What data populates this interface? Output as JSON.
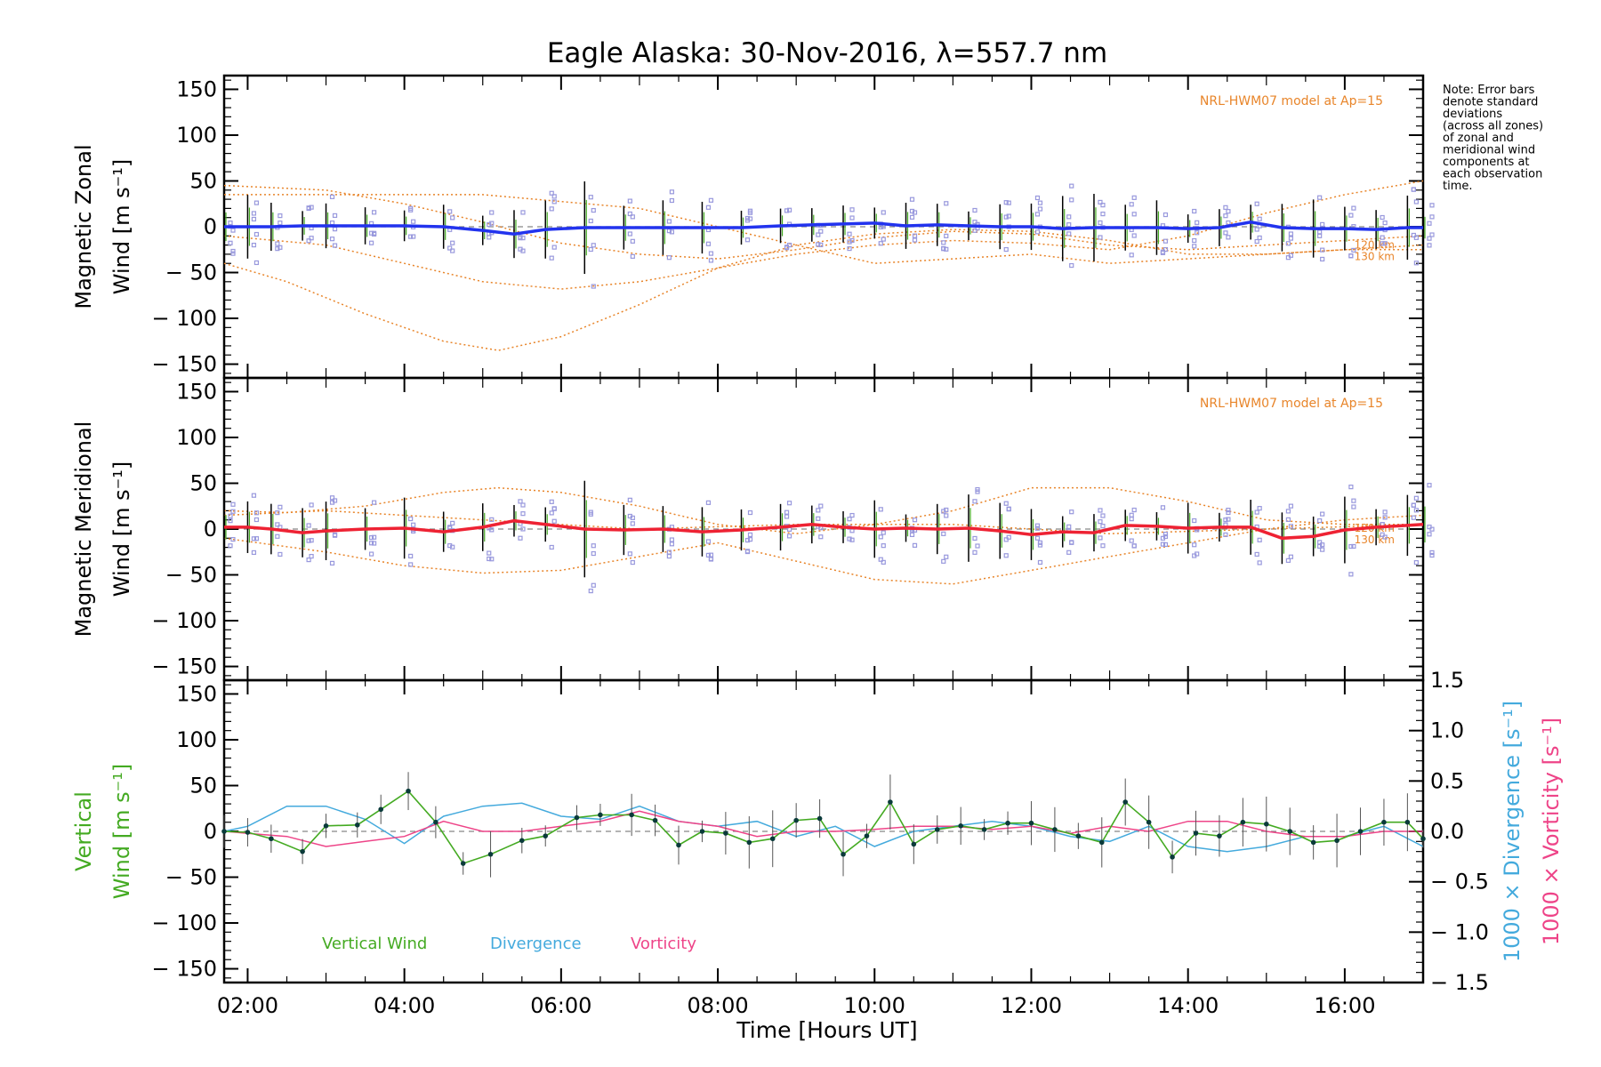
{
  "title": "Eagle Alaska: 30-Nov-2016, λ=557.7 nm",
  "note_lines": [
    "Note: Error bars",
    "denote standard",
    "deviations",
    "(across all zones)",
    "of zonal and",
    "meridional wind",
    "components at",
    "each observation",
    "time."
  ],
  "model_label": "NRL-HWM07 model at Ap=15",
  "alt_labels": [
    "120 km",
    "130 km"
  ],
  "xlabel": "Time [Hours UT]",
  "x_ticks": [
    "02:00",
    "04:00",
    "06:00",
    "08:00",
    "10:00",
    "12:00",
    "14:00",
    "16:00"
  ],
  "y_ticks": [
    "150",
    "100",
    "50",
    "0",
    "− 50",
    "− 100",
    "− 150"
  ],
  "y2_ticks": [
    "1.5",
    "1.0",
    "0.5",
    "0.0",
    "− 0.5",
    "− 1.0",
    "− 1.5"
  ],
  "panels": {
    "zonal": {
      "ylabel_line1": "Magnetic Zonal",
      "ylabel_line2": "Wind [m s⁻¹]"
    },
    "meridional": {
      "ylabel_line1": "Magnetic Meridional",
      "ylabel_line2": "Wind [m s⁻¹]"
    },
    "vertical": {
      "ylabel_line1": "Vertical",
      "ylabel_line2": "Wind [m s⁻¹]",
      "y2label_divergence": "1000 × Divergence [s⁻¹]",
      "y2label_vorticity": "1000 × Vorticity [s⁻¹]"
    }
  },
  "legend": {
    "vertical": "Vertical Wind",
    "divergence": "Divergence",
    "vorticity": "Vorticity"
  },
  "colors": {
    "zonal": "#2233ee",
    "meridional": "#ee2233",
    "vertical": "#44aa22",
    "divergence": "#44aadd",
    "vorticity": "#ee4488",
    "model": "#e8852a",
    "scatter": "#9999dd",
    "errbar": "#000000"
  },
  "chart_data": [
    {
      "type": "line",
      "name": "zonal",
      "xlim": [
        1.7,
        17.0
      ],
      "ylim": [
        -165,
        165
      ],
      "series": [
        {
          "name": "Zonal wind",
          "x": [
            1.7,
            2.0,
            2.3,
            2.7,
            3.0,
            3.5,
            4.0,
            4.5,
            5.0,
            5.4,
            5.8,
            6.3,
            6.8,
            7.3,
            7.8,
            8.3,
            8.8,
            9.2,
            9.6,
            10.0,
            10.4,
            10.8,
            11.2,
            11.6,
            12.0,
            12.4,
            12.8,
            13.2,
            13.6,
            14.0,
            14.4,
            14.8,
            15.2,
            15.6,
            16.0,
            16.4,
            16.8,
            17.0
          ],
          "y": [
            0,
            0,
            0,
            1,
            1,
            1,
            1,
            0,
            -4,
            -8,
            -3,
            -1,
            -1,
            -1,
            -1,
            -1,
            1,
            2,
            3,
            4,
            1,
            2,
            1,
            0,
            0,
            -2,
            -1,
            -1,
            -1,
            -2,
            -1,
            5,
            -1,
            -2,
            -2,
            -3,
            -1,
            -1
          ]
        }
      ],
      "models": [
        {
          "x": [
            1.7,
            3,
            4,
            5,
            6,
            7,
            8,
            9,
            10,
            11,
            12,
            13,
            14,
            15,
            16,
            17
          ],
          "y": [
            45,
            40,
            25,
            5,
            -18,
            -30,
            -35,
            -25,
            -12,
            -5,
            -8,
            -20,
            -25,
            -20,
            -15,
            -10
          ]
        },
        {
          "x": [
            1.7,
            2.5,
            3.5,
            4.5,
            5.2,
            6,
            7,
            8,
            9,
            10,
            11,
            12,
            13,
            14,
            15,
            16,
            17
          ],
          "y": [
            -40,
            -60,
            -95,
            -125,
            -135,
            -120,
            -85,
            -45,
            -20,
            -8,
            -3,
            -5,
            -15,
            -30,
            -30,
            -25,
            -25
          ]
        },
        {
          "x": [
            1.7,
            3,
            4,
            5,
            6,
            7,
            8,
            9,
            10,
            11,
            12,
            13,
            14,
            15,
            16,
            17
          ],
          "y": [
            -10,
            -20,
            -40,
            -60,
            -68,
            -60,
            -45,
            -30,
            -20,
            -15,
            -18,
            -25,
            -10,
            15,
            35,
            50
          ]
        },
        {
          "x": [
            1.7,
            3,
            5,
            7,
            9,
            10,
            11,
            12,
            13,
            14,
            15,
            16,
            17
          ],
          "y": [
            35,
            35,
            35,
            20,
            -20,
            -40,
            -35,
            -30,
            -40,
            -35,
            -30,
            -25,
            -20
          ]
        }
      ]
    },
    {
      "type": "line",
      "name": "meridional",
      "xlim": [
        1.7,
        17.0
      ],
      "ylim": [
        -165,
        165
      ],
      "series": [
        {
          "name": "Meridional wind",
          "x": [
            1.7,
            2.0,
            2.3,
            2.7,
            3.0,
            3.5,
            4.0,
            4.5,
            5.0,
            5.4,
            5.8,
            6.3,
            6.8,
            7.3,
            7.8,
            8.3,
            8.8,
            9.2,
            9.6,
            10.0,
            10.4,
            10.8,
            11.2,
            11.6,
            12.0,
            12.4,
            12.8,
            13.2,
            13.6,
            14.0,
            14.4,
            14.8,
            15.2,
            15.6,
            16.0,
            16.4,
            16.8,
            17.0
          ],
          "y": [
            2,
            2,
            0,
            -4,
            -2,
            0,
            1,
            -3,
            2,
            9,
            5,
            0,
            -1,
            0,
            -3,
            -1,
            2,
            5,
            2,
            0,
            1,
            0,
            1,
            -2,
            -6,
            -3,
            -4,
            4,
            3,
            1,
            2,
            2,
            -10,
            -8,
            -1,
            2,
            4,
            5
          ]
        }
      ],
      "models": [
        {
          "x": [
            1.7,
            2.5,
            3.5,
            4.5,
            5.2,
            6,
            7,
            8,
            9,
            10,
            11,
            12,
            13,
            14,
            15,
            16,
            17
          ],
          "y": [
            20,
            18,
            25,
            40,
            45,
            40,
            25,
            5,
            -5,
            5,
            20,
            45,
            45,
            30,
            10,
            5,
            5
          ]
        },
        {
          "x": [
            1.7,
            3,
            4,
            5,
            6,
            7,
            8,
            9,
            10,
            11,
            12,
            13,
            14,
            15,
            16,
            17
          ],
          "y": [
            -10,
            -25,
            -40,
            -48,
            -45,
            -30,
            -15,
            -35,
            -55,
            -60,
            -45,
            -30,
            -15,
            0,
            10,
            15
          ]
        },
        {
          "x": [
            1.7,
            3,
            5,
            7,
            9,
            11,
            13,
            15,
            17
          ],
          "y": [
            15,
            20,
            10,
            0,
            5,
            5,
            -5,
            0,
            5
          ]
        }
      ]
    },
    {
      "type": "line",
      "name": "vertical",
      "xlim": [
        1.7,
        17.0
      ],
      "ylim": [
        -165,
        165
      ],
      "y2lim": [
        -1.5,
        1.5
      ],
      "series": [
        {
          "name": "Vertical Wind",
          "x": [
            1.7,
            2.0,
            2.3,
            2.7,
            3.0,
            3.4,
            3.7,
            4.05,
            4.4,
            4.75,
            5.1,
            5.5,
            5.8,
            6.2,
            6.5,
            6.9,
            7.2,
            7.5,
            7.8,
            8.1,
            8.4,
            8.7,
            9.0,
            9.3,
            9.6,
            9.9,
            10.2,
            10.5,
            10.8,
            11.1,
            11.4,
            11.7,
            12.0,
            12.3,
            12.6,
            12.9,
            13.2,
            13.5,
            13.8,
            14.1,
            14.4,
            14.7,
            15.0,
            15.3,
            15.6,
            15.9,
            16.2,
            16.5,
            16.8,
            17.0
          ],
          "y": [
            0,
            -1,
            -8,
            -22,
            6,
            7,
            24,
            44,
            10,
            -35,
            -25,
            -10,
            -5,
            15,
            18,
            18,
            12,
            -15,
            0,
            -2,
            -12,
            -8,
            12,
            14,
            -25,
            -5,
            32,
            -14,
            2,
            6,
            2,
            9,
            9,
            2,
            -5,
            -12,
            32,
            10,
            -28,
            -2,
            -5,
            10,
            8,
            0,
            -12,
            -10,
            0,
            10,
            10,
            -8
          ]
        },
        {
          "name": "Divergence",
          "x": [
            1.7,
            2.0,
            2.5,
            3.0,
            3.5,
            4.0,
            4.5,
            5.0,
            5.5,
            6.0,
            6.5,
            7.0,
            7.5,
            8.0,
            8.5,
            9.0,
            9.5,
            10.0,
            10.5,
            11.0,
            11.5,
            12.0,
            12.5,
            13.0,
            13.5,
            14.0,
            14.5,
            15.0,
            15.5,
            16.0,
            16.5,
            17.0
          ],
          "y": [
            0.0,
            0.05,
            0.25,
            0.25,
            0.12,
            -0.12,
            0.15,
            0.25,
            0.28,
            0.15,
            0.12,
            0.25,
            0.1,
            0.05,
            0.1,
            -0.05,
            0.05,
            -0.15,
            0.0,
            0.05,
            0.1,
            0.05,
            -0.05,
            -0.1,
            0.05,
            -0.15,
            -0.2,
            -0.15,
            -0.05,
            -0.05,
            0.05,
            -0.15
          ]
        },
        {
          "name": "Vorticity",
          "x": [
            1.7,
            2.0,
            2.5,
            3.0,
            3.5,
            4.0,
            4.5,
            5.0,
            5.5,
            6.0,
            6.5,
            7.0,
            7.5,
            8.0,
            8.5,
            9.0,
            9.5,
            10.0,
            10.5,
            11.0,
            11.5,
            12.0,
            12.5,
            13.0,
            13.5,
            14.0,
            14.5,
            15.0,
            15.5,
            16.0,
            16.5,
            17.0
          ],
          "y": [
            0.0,
            -0.02,
            -0.05,
            -0.15,
            -0.1,
            -0.05,
            0.1,
            0.0,
            0.0,
            0.05,
            0.1,
            0.2,
            0.1,
            0.05,
            -0.05,
            0.0,
            0.0,
            0.02,
            0.05,
            0.05,
            0.02,
            0.05,
            -0.02,
            0.05,
            0.0,
            0.1,
            0.1,
            0.0,
            -0.05,
            -0.05,
            0.0,
            0.0
          ]
        }
      ]
    }
  ]
}
